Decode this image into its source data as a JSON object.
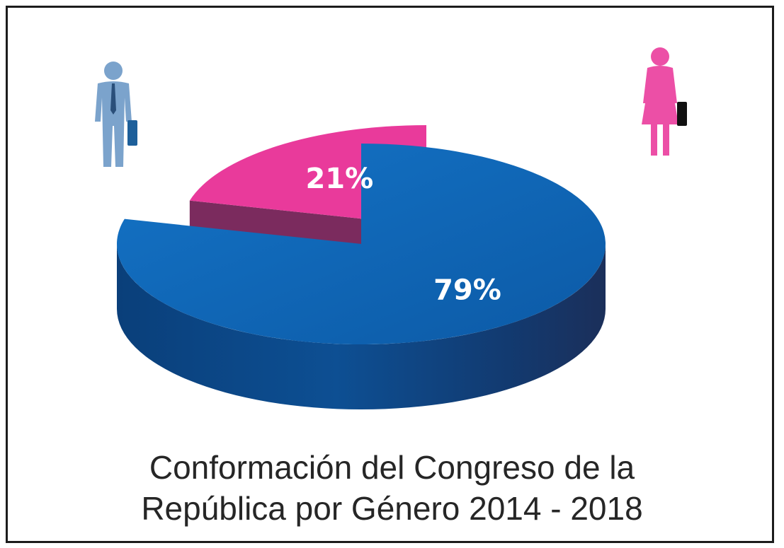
{
  "chart_data": {
    "type": "pie",
    "style": "3d-exploded",
    "title_lines": [
      "Conformación del Congreso de la",
      "República por Género 2014 - 2018"
    ],
    "slices": [
      {
        "value": 79,
        "label": "79%",
        "color": "#0f66b6",
        "icon": "man-icon"
      },
      {
        "value": 21,
        "label": "21%",
        "color": "#e93a9b",
        "icon": "woman-icon"
      }
    ]
  }
}
